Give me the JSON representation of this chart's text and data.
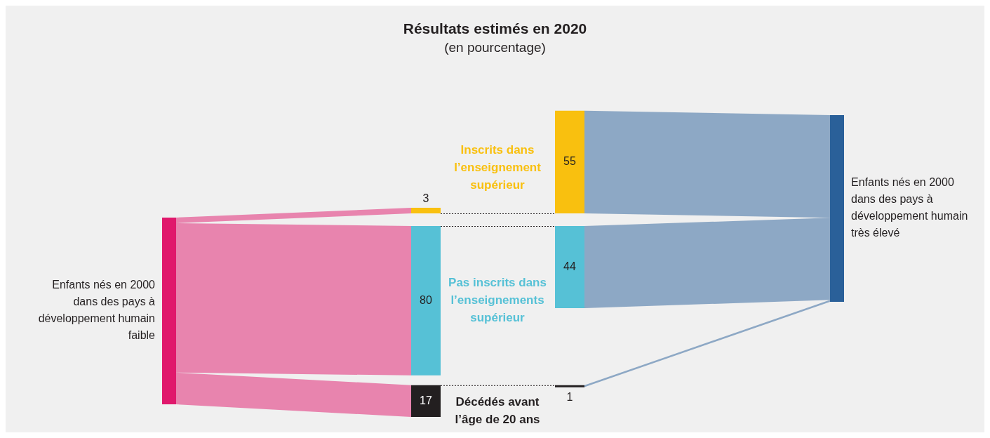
{
  "chart_data": {
    "type": "other",
    "title": "Résultats estimés en 2020",
    "subtitle": "(en pourcentage)",
    "categories": [
      "Enfants nés en 2000 dans des pays à développement humain faible",
      "Enfants nés en 2000 dans des pays à développement humain très élevé"
    ],
    "colors": [
      "#e0186c",
      "#2a6099"
    ],
    "series": [
      {
        "name": "Inscrits dans l’enseignement supérieur",
        "color": "#f9c00f",
        "values": [
          3,
          55
        ]
      },
      {
        "name": "Pas inscrits dans l’enseignements supérieur",
        "color": "#56c1d6",
        "values": [
          80,
          44
        ]
      },
      {
        "name": "Décédés avant l’âge de 20 ans",
        "color": "#231f20",
        "values": [
          17,
          1
        ]
      }
    ],
    "data_labels": true
  }
}
